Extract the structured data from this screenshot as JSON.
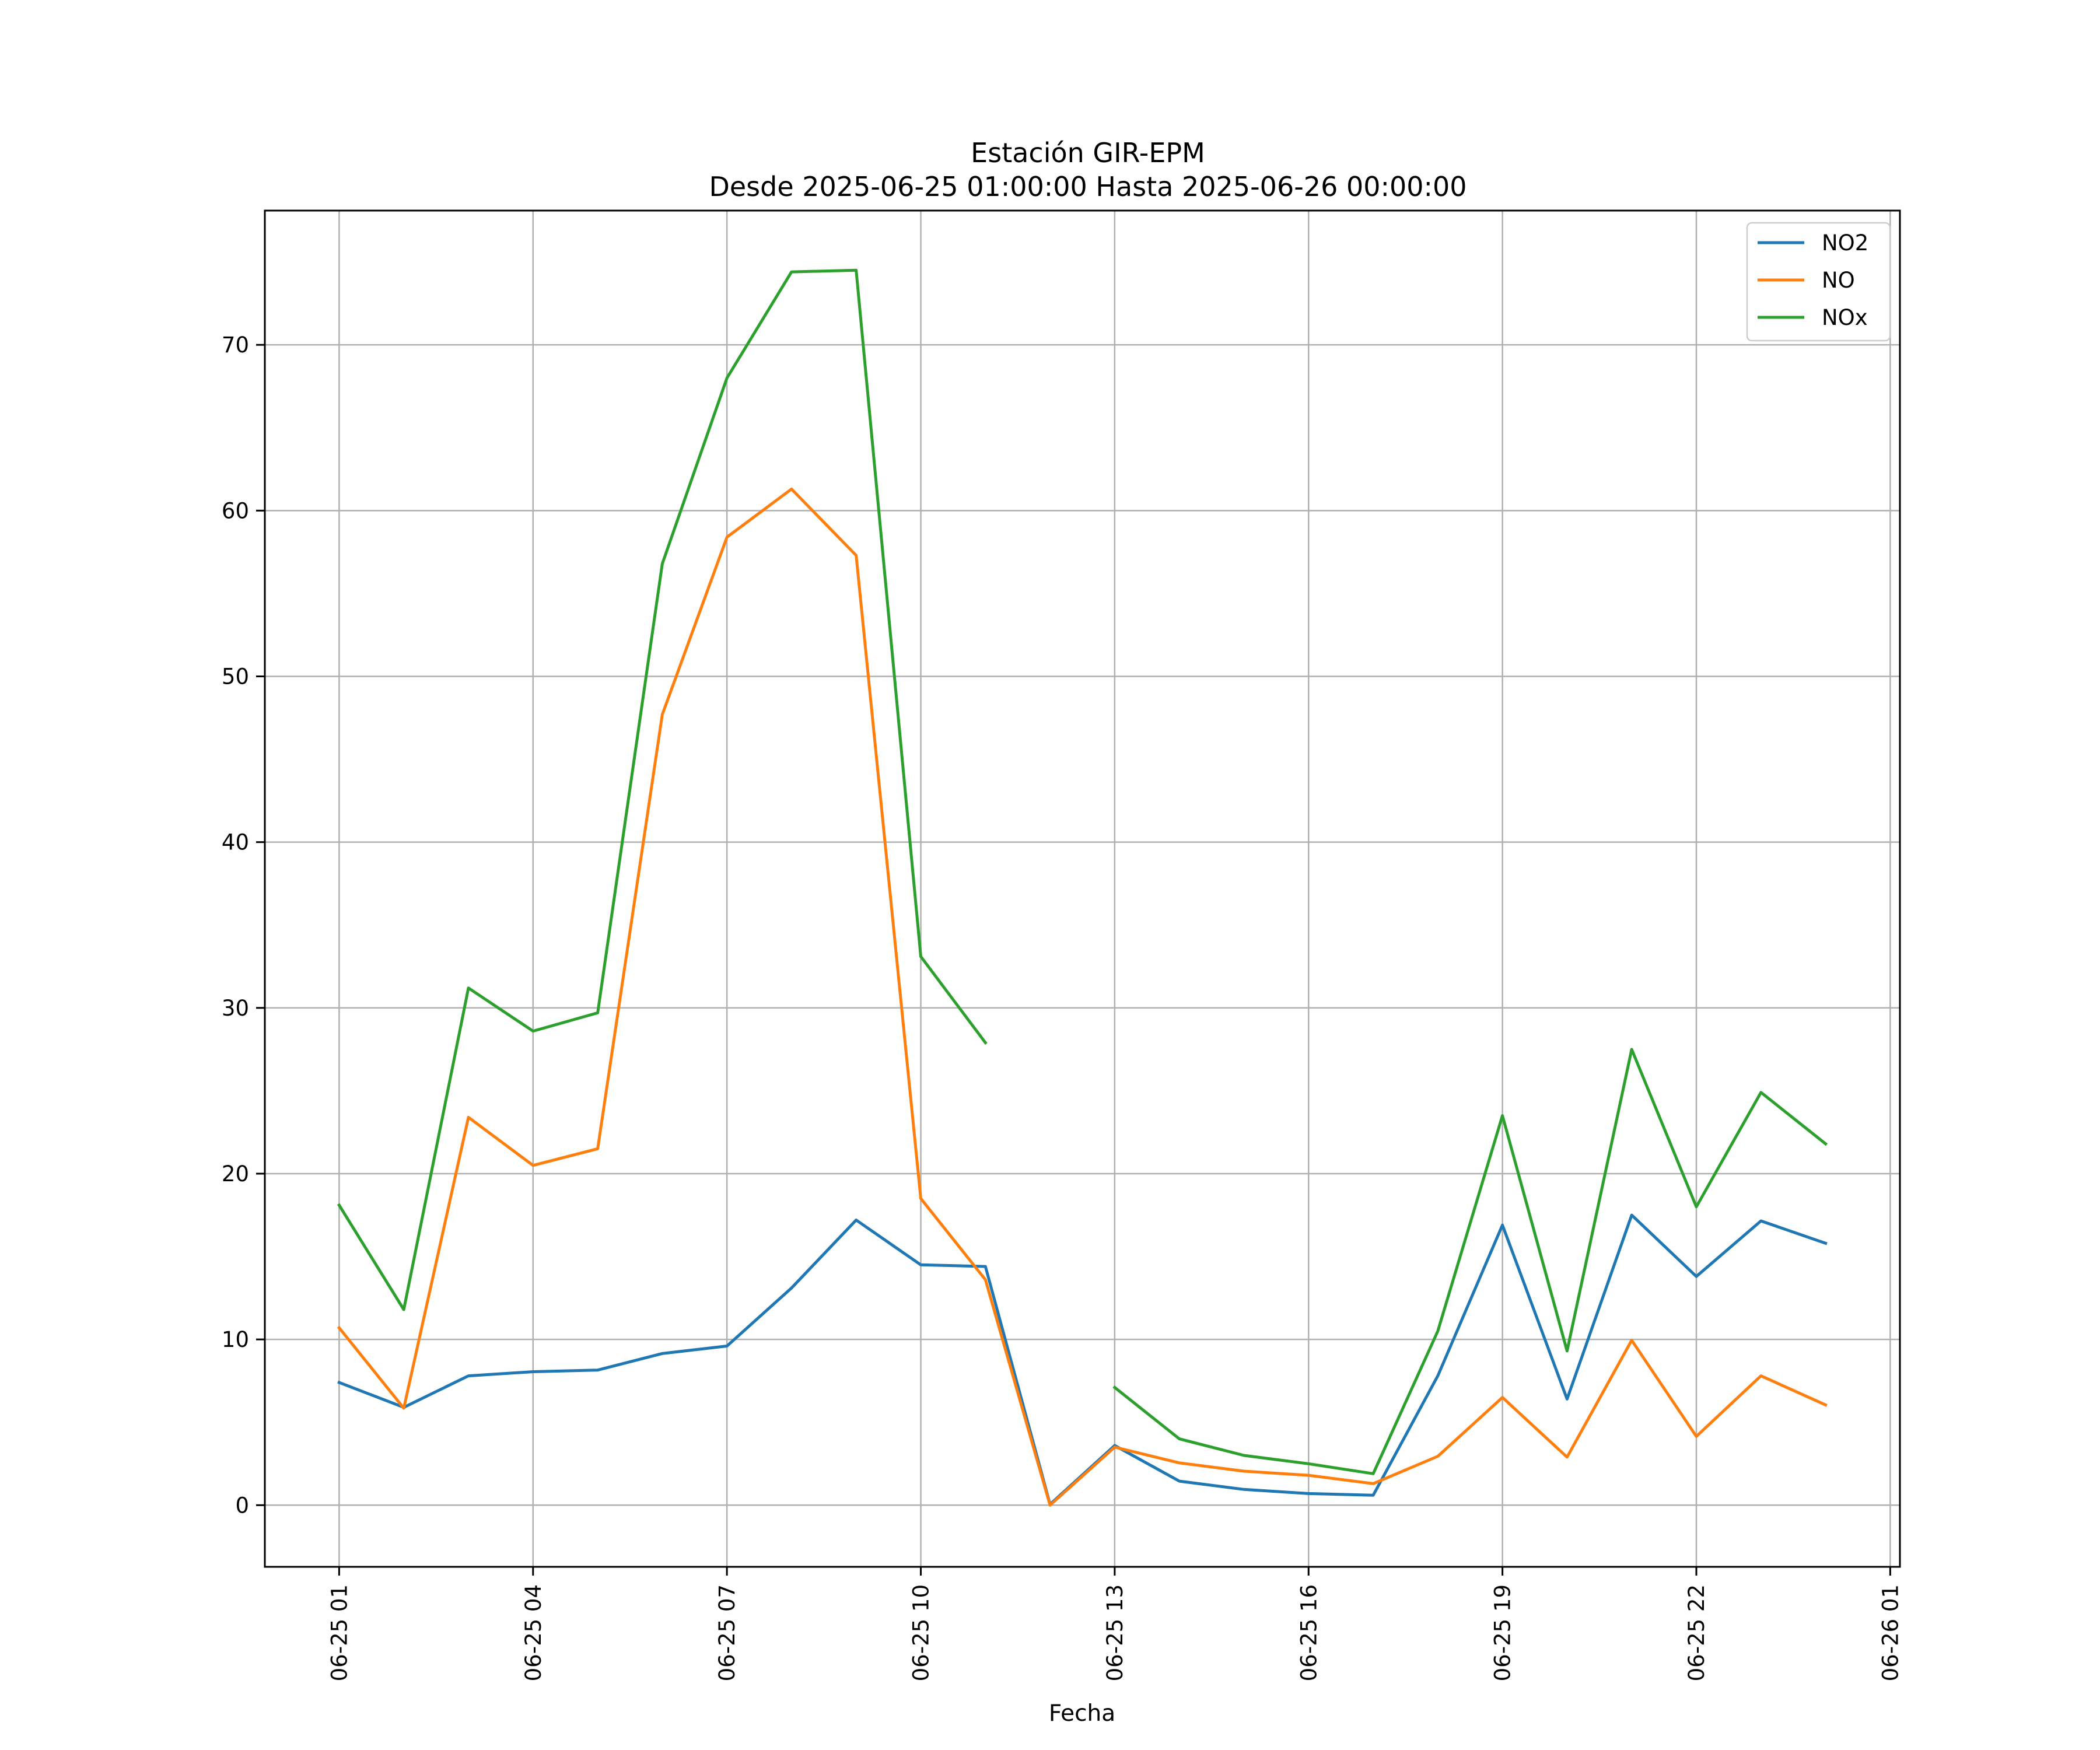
{
  "chart_data": {
    "type": "line",
    "title": "Estación GIR-EPM",
    "subtitle": "Desde 2025-06-25 01:00:00 Hasta 2025-06-26 00:00:00",
    "xlabel": "Fecha",
    "ylabel": "",
    "xlim": [
      "2025-06-24 23:51",
      "2025-06-26 01:09"
    ],
    "ylim": [
      -3.72,
      78.1
    ],
    "grid": true,
    "legend_position": "top-right",
    "x_ticks": [
      "06-25 01",
      "06-25 04",
      "06-25 07",
      "06-25 10",
      "06-25 13",
      "06-25 16",
      "06-25 19",
      "06-25 22",
      "06-26 01"
    ],
    "y_ticks": [
      0,
      10,
      20,
      30,
      40,
      50,
      60,
      70
    ],
    "x": [
      "2025-06-25 01:00",
      "2025-06-25 02:00",
      "2025-06-25 03:00",
      "2025-06-25 04:00",
      "2025-06-25 05:00",
      "2025-06-25 06:00",
      "2025-06-25 07:00",
      "2025-06-25 08:00",
      "2025-06-25 09:00",
      "2025-06-25 10:00",
      "2025-06-25 11:00",
      "2025-06-25 12:00",
      "2025-06-25 13:00",
      "2025-06-25 14:00",
      "2025-06-25 15:00",
      "2025-06-25 16:00",
      "2025-06-25 17:00",
      "2025-06-25 18:00",
      "2025-06-25 19:00",
      "2025-06-25 20:00",
      "2025-06-25 21:00",
      "2025-06-25 22:00",
      "2025-06-25 23:00",
      "2025-06-26 00:00"
    ],
    "series": [
      {
        "name": "NO2",
        "color": "#1f77b4",
        "values": [
          7.4,
          5.9,
          7.8,
          8.05,
          8.15,
          9.15,
          9.6,
          13.1,
          17.2,
          14.5,
          14.4,
          0.05,
          3.6,
          1.45,
          0.95,
          0.7,
          0.6,
          7.8,
          16.9,
          6.4,
          17.5,
          13.8,
          17.15,
          15.8
        ]
      },
      {
        "name": "NO",
        "color": "#ff7f0e",
        "values": [
          10.7,
          5.85,
          23.4,
          20.5,
          21.5,
          47.7,
          58.4,
          61.3,
          57.3,
          18.5,
          13.6,
          0.0,
          3.5,
          2.55,
          2.05,
          1.8,
          1.3,
          2.95,
          6.5,
          2.9,
          9.95,
          4.15,
          7.8,
          6.05
        ]
      },
      {
        "name": "NOx",
        "color": "#2ca02c",
        "values": [
          18.1,
          11.8,
          31.2,
          28.6,
          29.7,
          56.8,
          68.0,
          74.4,
          74.5,
          33.1,
          27.9,
          null,
          7.1,
          4.0,
          3.0,
          2.5,
          1.9,
          10.5,
          23.5,
          9.3,
          27.5,
          18.0,
          24.9,
          21.8
        ]
      }
    ]
  }
}
